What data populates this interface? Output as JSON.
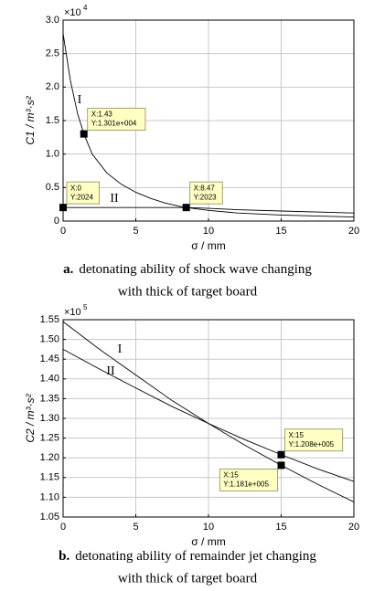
{
  "chart_data": [
    {
      "type": "line",
      "y_multiplier": {
        "base": "×10",
        "exponent": "4"
      },
      "ylabel": "C1 / m³·s²",
      "xlabel": "σ / mm",
      "caption_label": "a.",
      "caption_lines": [
        "detonating ability of shock wave changing",
        "with thick of target board"
      ],
      "x": [
        0,
        0.5,
        1,
        1.43,
        2,
        3,
        4,
        5,
        6,
        7,
        8,
        8.47,
        10,
        12,
        15,
        20
      ],
      "series": [
        {
          "name": "I",
          "color": "#000000",
          "values": [
            2.8,
            2.1,
            1.6,
            1.301,
            1.0,
            0.72,
            0.55,
            0.43,
            0.34,
            0.27,
            0.22,
            0.2023,
            0.16,
            0.12,
            0.09,
            0.06
          ]
        },
        {
          "name": "II",
          "color": "#000000",
          "values": [
            0.2024,
            0.2024,
            0.2024,
            0.2024,
            0.2024,
            0.2024,
            0.2024,
            0.2024,
            0.2024,
            0.2023,
            0.2023,
            0.2023,
            0.19,
            0.17,
            0.15,
            0.12
          ]
        }
      ],
      "annotations": [
        {
          "x": 0,
          "y": 0.2024,
          "text": [
            "X:0",
            "Y:2024"
          ]
        },
        {
          "x": 1.43,
          "y": 1.301,
          "text": [
            "X:1.43",
            "Y:1.301e+004"
          ]
        },
        {
          "x": 8.47,
          "y": 0.2023,
          "text": [
            "X:8.47",
            "Y:2023"
          ]
        }
      ],
      "xlim": [
        0,
        20
      ],
      "xticks": [
        0,
        5,
        10,
        15,
        20
      ],
      "ylim": [
        0,
        3
      ],
      "yticks": [
        0,
        0.5,
        {
          "value": 1,
          "label": "1.0"
        },
        1.5,
        {
          "value": 2,
          "label": "2.0"
        },
        2.5,
        {
          "value": 3,
          "label": "3.0"
        }
      ],
      "grid": true
    },
    {
      "type": "line",
      "y_multiplier": {
        "base": "×10",
        "exponent": "5"
      },
      "ylabel": "C2 / m³·s²",
      "xlabel": "σ / mm",
      "caption_label": "b.",
      "caption_lines": [
        "detonating ability of remainder jet changing",
        "with thick of target board"
      ],
      "x": [
        0,
        2.5,
        5,
        7.5,
        10,
        12.5,
        15,
        17.5,
        20
      ],
      "series": [
        {
          "name": "I",
          "color": "#000000",
          "values": [
            1.545,
            1.475,
            1.41,
            1.345,
            1.287,
            1.232,
            1.181,
            1.133,
            1.088
          ]
        },
        {
          "name": "II",
          "color": "#000000",
          "values": [
            1.475,
            1.425,
            1.377,
            1.33,
            1.287,
            1.246,
            1.208,
            1.172,
            1.14
          ]
        }
      ],
      "annotations": [
        {
          "x": 15,
          "y": 1.208,
          "text": [
            "X:15",
            "Y:1.208e+005"
          ]
        },
        {
          "x": 15,
          "y": 1.181,
          "text": [
            "X:15",
            "Y:1.181e+005"
          ]
        }
      ],
      "xlim": [
        0,
        20
      ],
      "xticks": [
        0,
        5,
        10,
        15,
        20
      ],
      "ylim": [
        1.05,
        1.55
      ],
      "yticks": [
        1.05,
        {
          "value": 1.1,
          "label": "1.10"
        },
        1.15,
        {
          "value": 1.2,
          "label": "1.20"
        },
        1.25,
        {
          "value": 1.3,
          "label": "1.30"
        },
        1.35,
        {
          "value": 1.4,
          "label": "1.40"
        },
        1.45,
        {
          "value": 1.5,
          "label": "1.50"
        },
        1.55
      ],
      "grid": true
    }
  ]
}
